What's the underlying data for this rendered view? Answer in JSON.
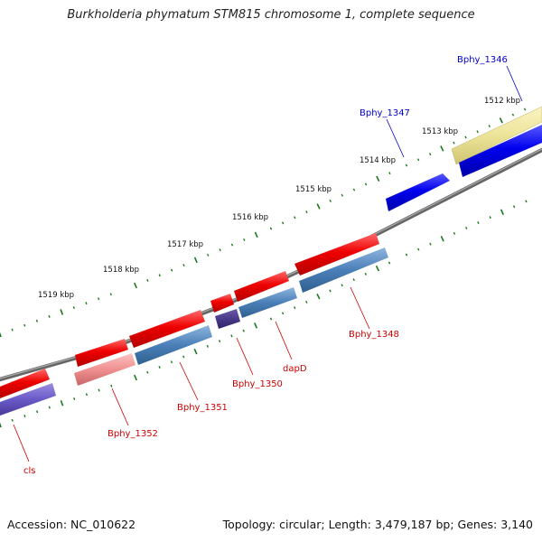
{
  "map": {
    "title": "Burkholderia phymatum STM815 chromosome 1, complete sequence",
    "footer": {
      "accession": "Accession: NC_010622",
      "stats": "Topology: circular; Length: 3,479,187 bp; Genes: 3,140"
    },
    "scale_labels": [
      "1512 kbp",
      "1513 kbp",
      "1514 kbp",
      "1515 kbp",
      "1516 kbp",
      "1517 kbp",
      "1518 kbp",
      "1519 kbp"
    ],
    "genes": [
      {
        "name": "Bphy_1346",
        "strand": "forward",
        "color": "#0000cc"
      },
      {
        "name": "Bphy_1347",
        "strand": "forward",
        "color": "#0000cc"
      },
      {
        "name": "Bphy_1348",
        "strand": "reverse",
        "color": "#cc0000"
      },
      {
        "name": "dapD",
        "strand": "reverse",
        "color": "#cc0000"
      },
      {
        "name": "Bphy_1350",
        "strand": "reverse",
        "color": "#cc0000"
      },
      {
        "name": "Bphy_1351",
        "strand": "reverse",
        "color": "#cc0000"
      },
      {
        "name": "Bphy_1352",
        "strand": "reverse",
        "color": "#cc0000"
      },
      {
        "name": "cls",
        "strand": "reverse",
        "color": "#cc0000"
      }
    ],
    "colors": {
      "forward_cds": "#0000ee",
      "reverse_cds": "#ee0000",
      "forward_label": "#0000cc",
      "reverse_label": "#cc0000",
      "tick": "#1a7a1a",
      "backbone": "#777777",
      "pale_yellow": "#ede49a",
      "steel_blue": "#4a7fb8",
      "slate_purple": "#5a4a9a",
      "pink": "#e88888"
    }
  }
}
